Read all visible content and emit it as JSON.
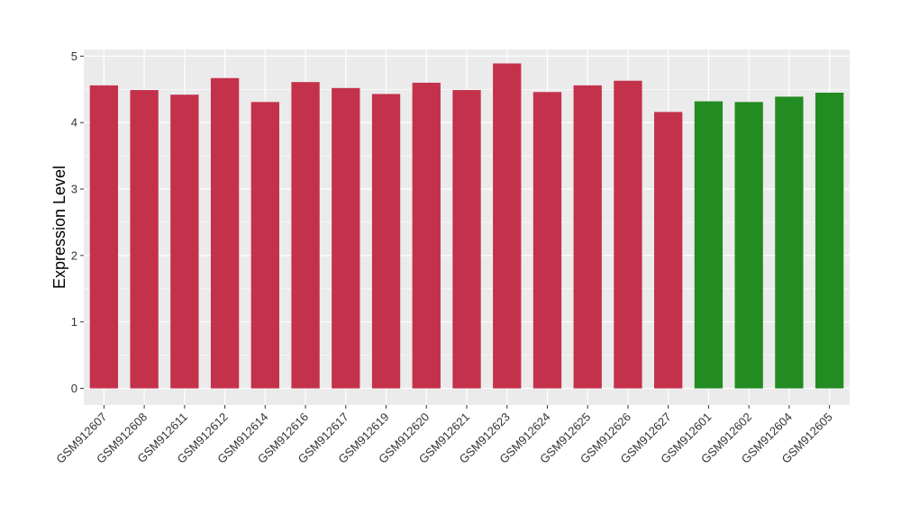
{
  "chart_data": {
    "type": "bar",
    "title": "",
    "xlabel": "",
    "ylabel": "Expression Level",
    "ylim": [
      -0.25,
      5.1
    ],
    "yticks": [
      0,
      1,
      2,
      3,
      4,
      5
    ],
    "grid": true,
    "categories": [
      "GSM912607",
      "GSM912608",
      "GSM912611",
      "GSM912612",
      "GSM912614",
      "GSM912616",
      "GSM912617",
      "GSM912619",
      "GSM912620",
      "GSM912621",
      "GSM912623",
      "GSM912624",
      "GSM912625",
      "GSM912626",
      "GSM912627",
      "GSM912601",
      "GSM912602",
      "GSM912604",
      "GSM912605"
    ],
    "values": [
      4.56,
      4.49,
      4.42,
      4.67,
      4.31,
      4.61,
      4.52,
      4.43,
      4.6,
      4.49,
      4.89,
      4.46,
      4.56,
      4.63,
      4.16,
      4.32,
      4.31,
      4.39,
      4.45
    ],
    "colors": [
      "#c4314b",
      "#c4314b",
      "#c4314b",
      "#c4314b",
      "#c4314b",
      "#c4314b",
      "#c4314b",
      "#c4314b",
      "#c4314b",
      "#c4314b",
      "#c4314b",
      "#c4314b",
      "#c4314b",
      "#c4314b",
      "#c4314b",
      "#228b22",
      "#228b22",
      "#228b22",
      "#228b22"
    ],
    "panel_color": "#ebebeb",
    "grid_color": "#ffffff"
  }
}
